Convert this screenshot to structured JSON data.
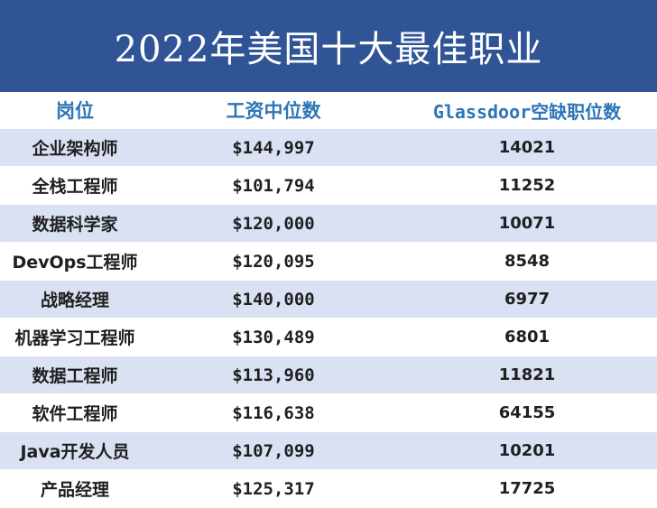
{
  "title": "2022年美国十大最佳职业",
  "columns": [
    "岗位",
    "工资中位数",
    "Glassdoor空缺职位数"
  ],
  "rows": [
    {
      "job": "企业架构师",
      "salary": "$144,997",
      "openings": "14021"
    },
    {
      "job": "全栈工程师",
      "salary": "$101,794",
      "openings": "11252"
    },
    {
      "job": "数据科学家",
      "salary": "$120,000",
      "openings": "10071"
    },
    {
      "job": "DevOps工程师",
      "salary": "$120,095",
      "openings": "8548"
    },
    {
      "job": "战略经理",
      "salary": "$140,000",
      "openings": "6977"
    },
    {
      "job": "机器学习工程师",
      "salary": "$130,489",
      "openings": "6801"
    },
    {
      "job": "数据工程师",
      "salary": "$113,960",
      "openings": "11821"
    },
    {
      "job": "软件工程师",
      "salary": "$116,638",
      "openings": "64155"
    },
    {
      "job": "Java开发人员",
      "salary": "$107,099",
      "openings": "10201"
    },
    {
      "job": "产品经理",
      "salary": "$125,317",
      "openings": "17725"
    }
  ],
  "colors": {
    "title_background": "#305496",
    "header_text": "#2e75b6",
    "band": "#d9e1f2"
  }
}
